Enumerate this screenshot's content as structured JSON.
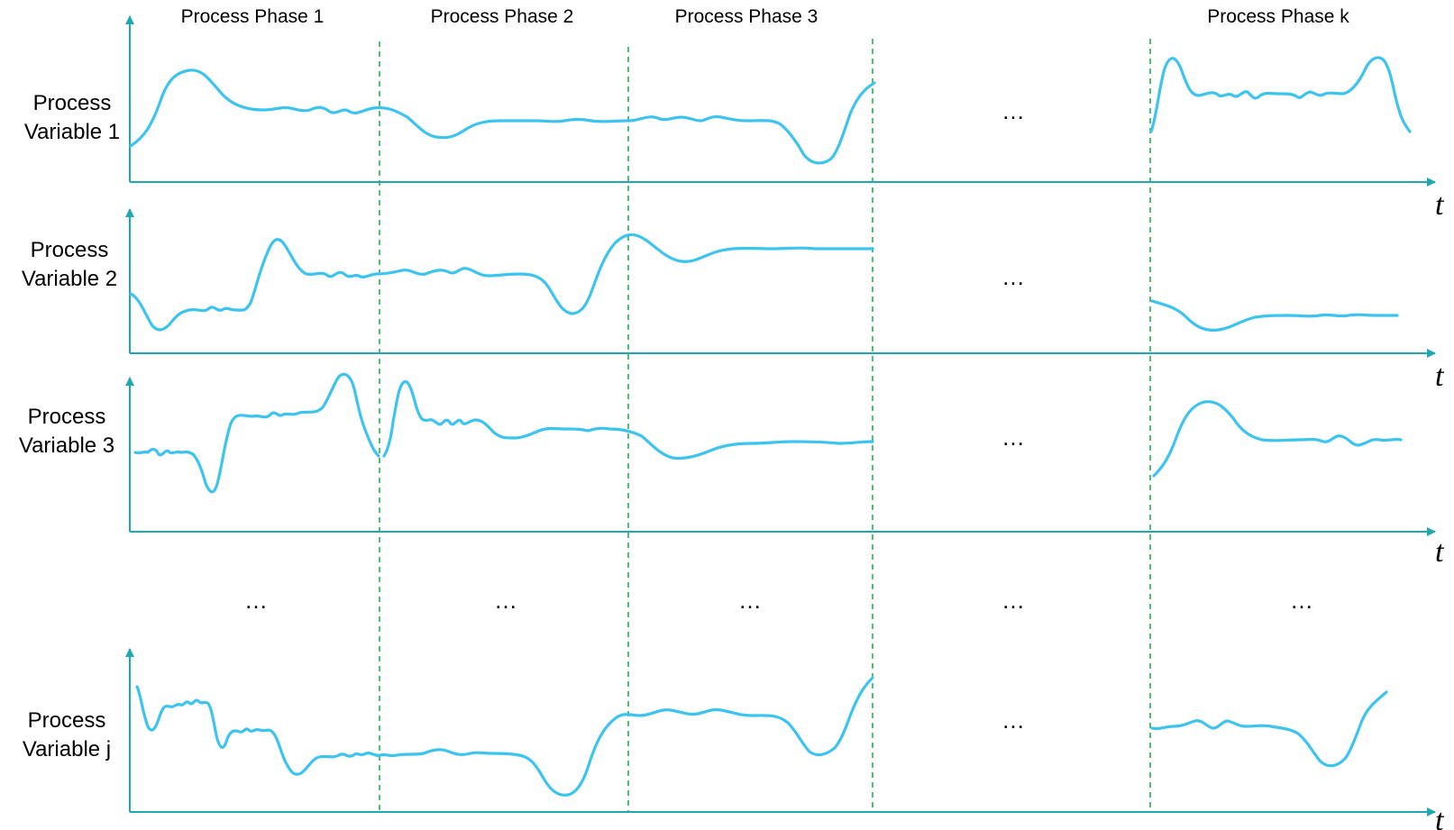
{
  "phases": [
    "Process Phase 1",
    "Process Phase 2",
    "Process Phase 3",
    "Process Phase k"
  ],
  "variables": [
    {
      "line1": "Process",
      "line2": "Variable 1"
    },
    {
      "line1": "Process",
      "line2": "Variable 2"
    },
    {
      "line1": "Process",
      "line2": "Variable 3"
    },
    {
      "line1": "Process",
      "line2": "Variable j"
    }
  ],
  "axis_symbol": "t",
  "ellipsis": "…",
  "colors": {
    "axis": "#1fa8b0",
    "signal": "#3cc4ef",
    "phase_boundary": "#22b14c",
    "text": "#000000"
  }
}
